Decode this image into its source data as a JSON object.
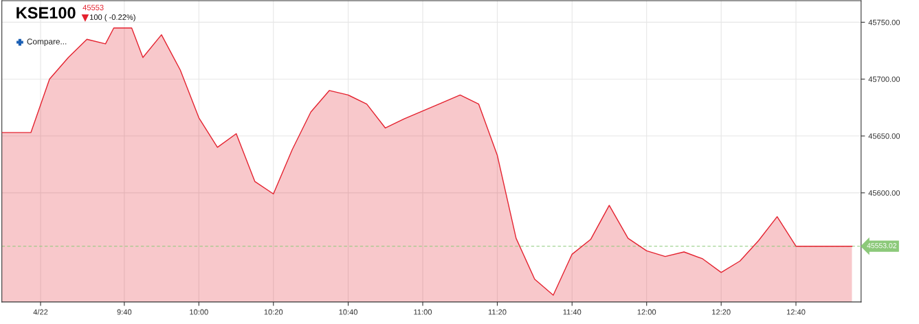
{
  "chart_data": {
    "type": "area",
    "title": "KSE100",
    "annotations": [
      "45553",
      "100 ( -0.22%)",
      "Compare..."
    ],
    "x": [
      9.12,
      9.25,
      9.333,
      9.417,
      9.5,
      9.583,
      9.62,
      9.7,
      9.75,
      9.833,
      9.917,
      10.0,
      10.083,
      10.167,
      10.25,
      10.333,
      10.417,
      10.5,
      10.583,
      10.667,
      10.75,
      10.833,
      10.917,
      11.0,
      11.083,
      11.167,
      11.25,
      11.333,
      11.417,
      11.5,
      11.583,
      11.667,
      11.75,
      11.833,
      11.917,
      12.0,
      12.083,
      12.167,
      12.25,
      12.333,
      12.417,
      12.5,
      12.583,
      12.667,
      12.917
    ],
    "series": [
      {
        "color": "#e4222f",
        "values": [
          45653,
          45653,
          45700,
          45719,
          45735,
          45731,
          45745,
          45745,
          45719,
          45739,
          45708,
          45666,
          45640,
          45652,
          45610,
          45599,
          45638,
          45671,
          45690,
          45686,
          45678,
          45657,
          45665,
          45672,
          45679,
          45686,
          45678,
          45633,
          45560,
          45524,
          45510,
          45546,
          45559,
          45589,
          45560,
          45549,
          45544,
          45548,
          45542,
          45530,
          45540,
          45558,
          45579,
          45553,
          45553
        ]
      }
    ],
    "xlim": [
      9.12,
      12.958
    ],
    "ylim": [
      45504,
      45769
    ],
    "xticks": [
      {
        "value": 9.293,
        "label": "4/22"
      },
      {
        "value": 9.667,
        "label": "9:40"
      },
      {
        "value": 10.0,
        "label": "10:00"
      },
      {
        "value": 10.333,
        "label": "10:20"
      },
      {
        "value": 10.667,
        "label": "10:40"
      },
      {
        "value": 11.0,
        "label": "11:00"
      },
      {
        "value": 11.333,
        "label": "11:20"
      },
      {
        "value": 11.667,
        "label": "11:40"
      },
      {
        "value": 12.0,
        "label": "12:00"
      },
      {
        "value": 12.333,
        "label": "12:20"
      },
      {
        "value": 12.667,
        "label": "12:40"
      }
    ],
    "yticks": [
      {
        "value": 45600,
        "label": "45600.00"
      },
      {
        "value": 45650,
        "label": "45650.00"
      },
      {
        "value": 45700,
        "label": "45700.00"
      },
      {
        "value": 45750,
        "label": "45750.00"
      }
    ],
    "ref_lines": [
      {
        "axis": "y",
        "value": 45553.02,
        "label": "45553.02",
        "color": "#8cc97a",
        "line_style": "dashed"
      }
    ],
    "grid": true,
    "legend": false,
    "marker": "none"
  }
}
